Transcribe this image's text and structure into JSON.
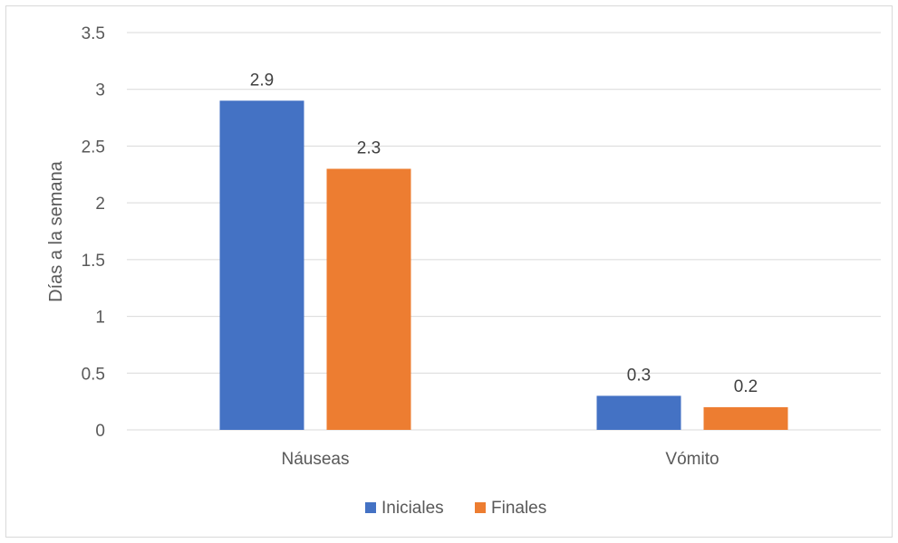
{
  "chart_data": {
    "type": "bar",
    "title": "",
    "xlabel": "",
    "ylabel": "Días a la semana",
    "ylim": [
      0,
      3.5
    ],
    "yticks": [
      0,
      0.5,
      1,
      1.5,
      2,
      2.5,
      3,
      3.5
    ],
    "ytick_labels": [
      "0",
      "0.5",
      "1",
      "1.5",
      "2",
      "2.5",
      "3",
      "3.5"
    ],
    "grid": true,
    "legend_position": "bottom",
    "categories": [
      "Náuseas",
      "Vómito"
    ],
    "series": [
      {
        "name": "Iniciales",
        "color": "#4472C4",
        "values": [
          2.9,
          0.3
        ],
        "labels": [
          "2.9",
          "0.3"
        ]
      },
      {
        "name": "Finales",
        "color": "#ED7D31",
        "values": [
          2.3,
          0.2
        ],
        "labels": [
          "2.3",
          "0.2"
        ]
      }
    ]
  }
}
